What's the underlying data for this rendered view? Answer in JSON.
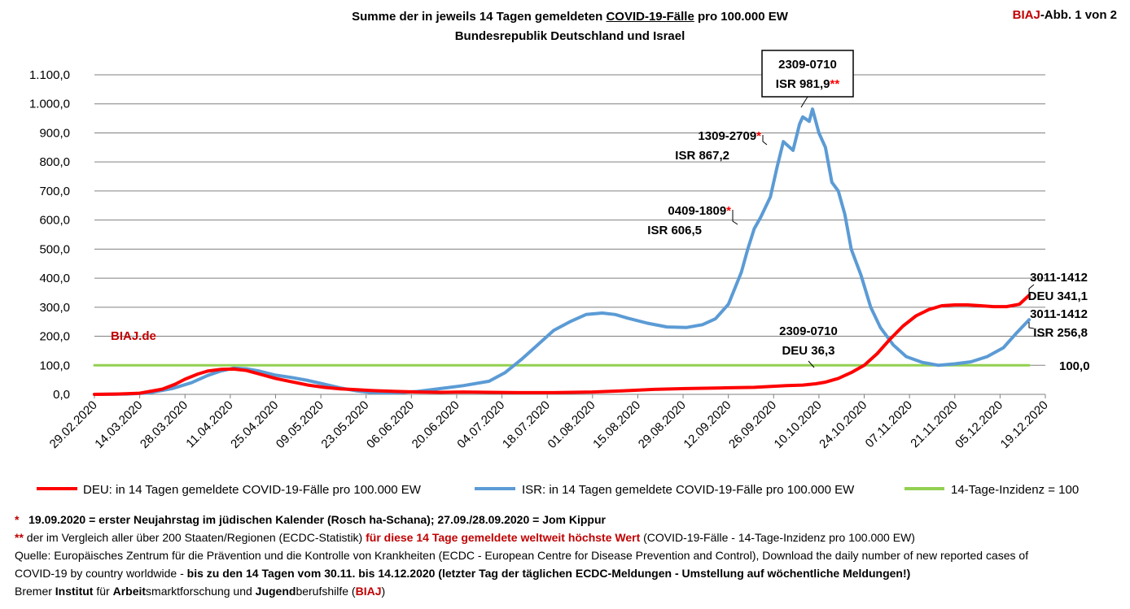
{
  "header": {
    "title_pre": "Summe der in jeweils 14 Tagen gemeldeten ",
    "title_underlined": "COVID-19-Fälle",
    "title_post": " pro 100.000 EW",
    "subtitle": "Bundesrepublik Deutschland und Israel",
    "corner_brand": "BIAJ",
    "corner_rest": "-Abb. 1 von 2"
  },
  "chart_data": {
    "type": "line",
    "title": "Summe der in jeweils 14 Tagen gemeldeten COVID-19-Fälle pro 100.000 EW",
    "subtitle": "Bundesrepublik Deutschland und Israel",
    "x_tick_labels": [
      "29.02.2020",
      "14.03.2020",
      "28.03.2020",
      "11.04.2020",
      "25.04.2020",
      "09.05.2020",
      "23.05.2020",
      "06.06.2020",
      "20.06.2020",
      "04.07.2020",
      "18.07.2020",
      "01.08.2020",
      "15.08.2020",
      "29.08.2020",
      "12.09.2020",
      "26.09.2020",
      "10.10.2020",
      "24.10.2020",
      "07.11.2020",
      "21.11.2020",
      "05.12.2020",
      "19.12.2020"
    ],
    "y_tick_labels": [
      "0,0",
      "100,0",
      "200,0",
      "300,0",
      "400,0",
      "500,0",
      "600,0",
      "700,0",
      "800,0",
      "900,0",
      "1.000,0",
      "1.100,0"
    ],
    "ylim": [
      0,
      1100
    ],
    "grid": true,
    "legend_position": "bottom",
    "series": [
      {
        "name": "DEU: in 14 Tagen gemeldete COVID-19-Fälle pro 100.000 EW",
        "color": "#ff0000",
        "points": [
          [
            "2020-02-29",
            0
          ],
          [
            "2020-03-07",
            1
          ],
          [
            "2020-03-14",
            4
          ],
          [
            "2020-03-21",
            18
          ],
          [
            "2020-03-25",
            35
          ],
          [
            "2020-03-28",
            52
          ],
          [
            "2020-04-01",
            70
          ],
          [
            "2020-04-04",
            80
          ],
          [
            "2020-04-08",
            86
          ],
          [
            "2020-04-12",
            87
          ],
          [
            "2020-04-16",
            82
          ],
          [
            "2020-04-20",
            70
          ],
          [
            "2020-04-25",
            55
          ],
          [
            "2020-04-30",
            43
          ],
          [
            "2020-05-05",
            32
          ],
          [
            "2020-05-10",
            24
          ],
          [
            "2020-05-15",
            19
          ],
          [
            "2020-05-20",
            16
          ],
          [
            "2020-05-25",
            13
          ],
          [
            "2020-06-01",
            10
          ],
          [
            "2020-06-08",
            8
          ],
          [
            "2020-06-15",
            7
          ],
          [
            "2020-06-22",
            8
          ],
          [
            "2020-06-30",
            7
          ],
          [
            "2020-07-10",
            6
          ],
          [
            "2020-07-20",
            6
          ],
          [
            "2020-08-01",
            8
          ],
          [
            "2020-08-10",
            12
          ],
          [
            "2020-08-20",
            17
          ],
          [
            "2020-08-30",
            20
          ],
          [
            "2020-09-10",
            22
          ],
          [
            "2020-09-20",
            24
          ],
          [
            "2020-09-30",
            30
          ],
          [
            "2020-10-05",
            32
          ],
          [
            "2020-10-09",
            36.3
          ],
          [
            "2020-10-12",
            42
          ],
          [
            "2020-10-16",
            55
          ],
          [
            "2020-10-20",
            75
          ],
          [
            "2020-10-24",
            100
          ],
          [
            "2020-10-28",
            140
          ],
          [
            "2020-11-01",
            190
          ],
          [
            "2020-11-05",
            235
          ],
          [
            "2020-11-09",
            270
          ],
          [
            "2020-11-13",
            292
          ],
          [
            "2020-11-17",
            305
          ],
          [
            "2020-11-21",
            308
          ],
          [
            "2020-11-25",
            308
          ],
          [
            "2020-11-29",
            305
          ],
          [
            "2020-12-03",
            302
          ],
          [
            "2020-12-07",
            302
          ],
          [
            "2020-12-11",
            310
          ],
          [
            "2020-12-14",
            341.1
          ]
        ]
      },
      {
        "name": "ISR: in 14 Tagen gemeldete COVID-19-Fälle pro 100.000 EW",
        "color": "#5b9bd5",
        "points": [
          [
            "2020-02-29",
            0
          ],
          [
            "2020-03-10",
            1
          ],
          [
            "2020-03-17",
            5
          ],
          [
            "2020-03-24",
            20
          ],
          [
            "2020-03-30",
            40
          ],
          [
            "2020-04-04",
            65
          ],
          [
            "2020-04-08",
            80
          ],
          [
            "2020-04-12",
            90
          ],
          [
            "2020-04-16",
            88
          ],
          [
            "2020-04-20",
            80
          ],
          [
            "2020-04-25",
            66
          ],
          [
            "2020-04-30",
            58
          ],
          [
            "2020-05-05",
            48
          ],
          [
            "2020-05-10",
            35
          ],
          [
            "2020-05-15",
            22
          ],
          [
            "2020-05-20",
            12
          ],
          [
            "2020-05-25",
            6
          ],
          [
            "2020-06-01",
            5
          ],
          [
            "2020-06-08",
            10
          ],
          [
            "2020-06-15",
            20
          ],
          [
            "2020-06-22",
            30
          ],
          [
            "2020-06-30",
            45
          ],
          [
            "2020-07-05",
            75
          ],
          [
            "2020-07-10",
            120
          ],
          [
            "2020-07-15",
            170
          ],
          [
            "2020-07-20",
            220
          ],
          [
            "2020-07-25",
            250
          ],
          [
            "2020-07-30",
            275
          ],
          [
            "2020-08-04",
            280
          ],
          [
            "2020-08-08",
            275
          ],
          [
            "2020-08-12",
            262
          ],
          [
            "2020-08-18",
            245
          ],
          [
            "2020-08-24",
            232
          ],
          [
            "2020-08-30",
            230
          ],
          [
            "2020-09-04",
            240
          ],
          [
            "2020-09-08",
            260
          ],
          [
            "2020-09-12",
            310
          ],
          [
            "2020-09-16",
            420
          ],
          [
            "2020-09-18",
            500
          ],
          [
            "2020-09-20",
            570
          ],
          [
            "2020-09-22",
            610
          ],
          [
            "2020-09-25",
            680
          ],
          [
            "2020-09-27",
            780
          ],
          [
            "2020-09-29",
            870
          ],
          [
            "2020-10-02",
            840
          ],
          [
            "2020-10-04",
            930
          ],
          [
            "2020-10-05",
            955
          ],
          [
            "2020-10-07",
            940
          ],
          [
            "2020-10-08",
            981.9
          ],
          [
            "2020-10-10",
            900
          ],
          [
            "2020-10-12",
            850
          ],
          [
            "2020-10-14",
            730
          ],
          [
            "2020-10-16",
            700
          ],
          [
            "2020-10-18",
            620
          ],
          [
            "2020-10-20",
            500
          ],
          [
            "2020-10-23",
            410
          ],
          [
            "2020-10-26",
            300
          ],
          [
            "2020-10-29",
            230
          ],
          [
            "2020-11-02",
            170
          ],
          [
            "2020-11-06",
            130
          ],
          [
            "2020-11-11",
            110
          ],
          [
            "2020-11-16",
            100
          ],
          [
            "2020-11-21",
            105
          ],
          [
            "2020-11-26",
            112
          ],
          [
            "2020-12-01",
            130
          ],
          [
            "2020-12-06",
            160
          ],
          [
            "2020-12-10",
            210
          ],
          [
            "2020-12-14",
            256.8
          ]
        ]
      },
      {
        "name": "14-Tage-Inzidenz = 100",
        "color": "#92d050",
        "points": [
          [
            "2020-02-29",
            100
          ],
          [
            "2020-12-14",
            100
          ]
        ]
      }
    ],
    "annotations": [
      {
        "id": "isr-peak",
        "line1": "2309-0710",
        "line2": "ISR 981,9",
        "marker": "**",
        "boxed": true
      },
      {
        "id": "isr-1309",
        "line1": "1309-2709",
        "marker": "*",
        "line2": "ISR 867,2"
      },
      {
        "id": "isr-0409",
        "line1": "0409-1809",
        "marker": "*",
        "line2": "ISR 606,5"
      },
      {
        "id": "deu-2309",
        "line1": "2309-0710",
        "line2": "DEU 36,3"
      },
      {
        "id": "deu-end",
        "line1": "3011-1412",
        "line2": "DEU 341,1"
      },
      {
        "id": "isr-end",
        "line1": "3011-1412",
        "line2": "ISR 256,8"
      },
      {
        "id": "ref-100",
        "line1": "100,0"
      }
    ],
    "watermark": "BIAJ.de"
  },
  "footnotes": {
    "line1_star": "*",
    "line1_text": "19.09.2020 = erster Neujahrstag im jüdischen Kalender (Rosch ha-Schana); 27.09./28.09.2020 = Jom Kippur",
    "line2_star": "**",
    "line2_a": " der im Vergleich aller über 200 Staaten/Regionen (ECDC-Statistik) ",
    "line2_b": "für diese 14 Tage gemeldete weltweit höchste Wert",
    "line2_c": " (COVID-19-Fälle - 14-Tage-Inzidenz pro 100.000 EW)",
    "line3": "Quelle: Europäisches Zentrum für die Prävention und die Kontrolle von Krankheiten (ECDC - European Centre for Disease Prevention and Control), Download the daily number of new reported cases of",
    "line4_a": "COVID-19 by country worldwide - ",
    "line4_b": "bis zu den 14 Tagen vom 30.11. bis 14.12.2020 (letzter Tag der täglichen ECDC-Meldungen - Umstellung auf wöchentliche Meldungen!)",
    "line5": {
      "p1": "Bremer ",
      "p2": "Institut",
      "p3": " für ",
      "p4": "Arbeit",
      "p5": "smarktforschung und ",
      "p6": "Jugend",
      "p7": "berufshilfe (",
      "p8": "BIAJ",
      "p9": ")"
    }
  }
}
